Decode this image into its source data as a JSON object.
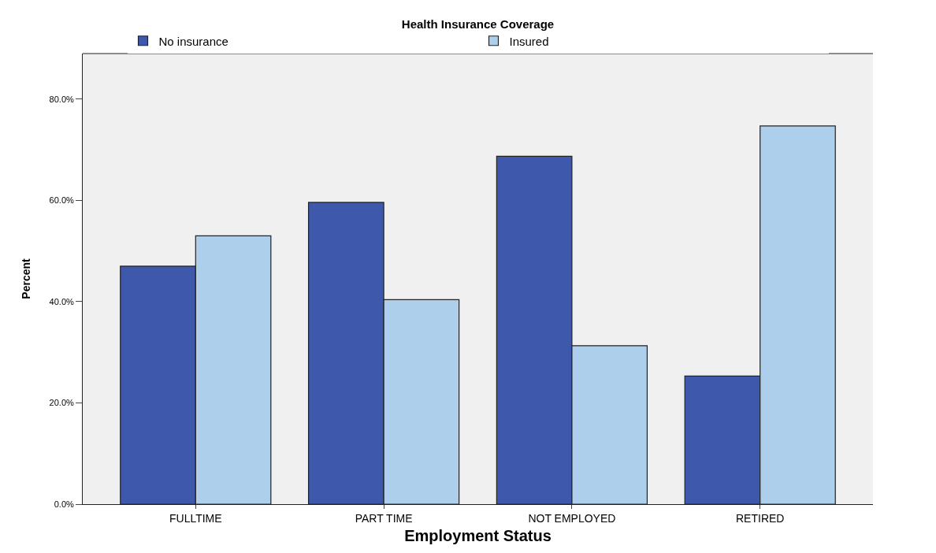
{
  "chart_data": {
    "type": "bar",
    "legend_title": "Health Insurance Coverage",
    "xlabel": "Employment Status",
    "ylabel": "Percent",
    "categories": [
      "FULLTIME",
      "PART TIME",
      "NOT EMPLOYED",
      "RETIRED"
    ],
    "series": [
      {
        "name": "No insurance",
        "color": "#3e58ac",
        "values": [
          47.0,
          59.6,
          68.7,
          25.3
        ]
      },
      {
        "name": "Insured",
        "color": "#aecfec",
        "values": [
          53.0,
          40.4,
          31.3,
          74.7
        ]
      }
    ],
    "ylim": [
      0,
      89
    ],
    "yticks": [
      {
        "value": 0,
        "label": "0.0%"
      },
      {
        "value": 20,
        "label": "20.0%"
      },
      {
        "value": 40,
        "label": "40.0%"
      },
      {
        "value": 60,
        "label": "60.0%"
      },
      {
        "value": 80,
        "label": "80.0%"
      }
    ],
    "grid": false,
    "legend": "top"
  }
}
